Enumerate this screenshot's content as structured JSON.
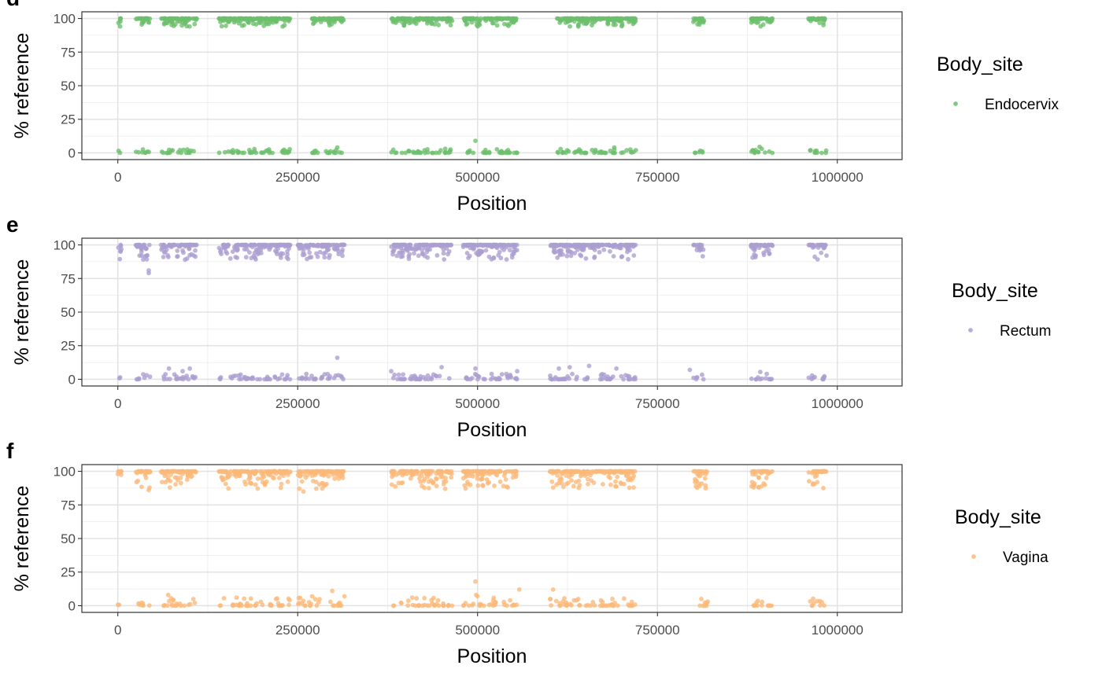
{
  "chart_data": [
    {
      "type": "scatter",
      "panel_tag": "d",
      "xlabel": "Position",
      "ylabel": "% reference",
      "xlim": [
        -50000,
        1090000
      ],
      "ylim": [
        -5,
        105
      ],
      "xticks": [
        0,
        250000,
        500000,
        750000,
        1000000
      ],
      "xtick_labels": [
        "0",
        "250000",
        "500000",
        "750000",
        "1000000"
      ],
      "yticks": [
        0,
        25,
        50,
        75,
        100
      ],
      "ytick_labels": [
        "0",
        "25",
        "50",
        "75",
        "100"
      ],
      "grid": true,
      "legend": {
        "title": "Body_site",
        "placement": "right",
        "entries": [
          {
            "label": "Endocervix",
            "color": "#6bbf6b"
          }
        ]
      },
      "series": [
        {
          "name": "Endocervix",
          "color": "#6bbf6b",
          "segments": [
            [
              0,
              5000
            ],
            [
              25000,
              45000
            ],
            [
              60000,
              110000
            ],
            [
              140000,
              240000
            ],
            [
              270000,
              315000
            ],
            [
              380000,
              465000
            ],
            [
              480000,
              555000
            ],
            [
              610000,
              720000
            ],
            [
              800000,
              815000
            ],
            [
              880000,
              910000
            ],
            [
              960000,
              985000
            ]
          ],
          "dense_high": [
            [
              25000,
              110000
            ],
            [
              140000,
              315000
            ],
            [
              380000,
              720000
            ],
            [
              880000,
              910000
            ],
            [
              960000,
              985000
            ]
          ],
          "high_range": [
            94,
            100
          ],
          "low_range": [
            0,
            3
          ],
          "outliers": [
            [
              497000,
              9
            ],
            [
              892000,
              4.5
            ],
            [
              895000,
              3
            ],
            [
              455000,
              3
            ],
            [
              160000,
              2
            ],
            [
              305000,
              4
            ],
            [
              690000,
              4
            ],
            [
              720000,
              2
            ],
            [
              800000,
              97.5
            ],
            [
              640000,
              94
            ]
          ]
        }
      ]
    },
    {
      "type": "scatter",
      "panel_tag": "e",
      "xlabel": "Position",
      "ylabel": "% reference",
      "xlim": [
        -50000,
        1090000
      ],
      "ylim": [
        -5,
        105
      ],
      "xticks": [
        0,
        250000,
        500000,
        750000,
        1000000
      ],
      "xtick_labels": [
        "0",
        "250000",
        "500000",
        "750000",
        "1000000"
      ],
      "yticks": [
        0,
        25,
        50,
        75,
        100
      ],
      "ytick_labels": [
        "0",
        "25",
        "50",
        "75",
        "100"
      ],
      "grid": true,
      "legend": {
        "title": "Body_site",
        "placement": "right",
        "entries": [
          {
            "label": "Rectum",
            "color": "#ab9ed1"
          }
        ]
      },
      "series": [
        {
          "name": "Rectum",
          "color": "#ab9ed1",
          "segments": [
            [
              0,
              5000
            ],
            [
              25000,
              45000
            ],
            [
              60000,
              110000
            ],
            [
              140000,
              240000
            ],
            [
              250000,
              315000
            ],
            [
              380000,
              465000
            ],
            [
              480000,
              555000
            ],
            [
              600000,
              720000
            ],
            [
              800000,
              815000
            ],
            [
              880000,
              910000
            ],
            [
              960000,
              985000
            ]
          ],
          "dense_high": [
            [
              25000,
              110000
            ],
            [
              140000,
              315000
            ],
            [
              380000,
              720000
            ],
            [
              880000,
              910000
            ],
            [
              960000,
              985000
            ]
          ],
          "high_range": [
            89,
            100
          ],
          "low_range": [
            0,
            4
          ],
          "outliers": [
            [
              43000,
              81
            ],
            [
              43000,
              79
            ],
            [
              33000,
              92
            ],
            [
              40000,
              92
            ],
            [
              305000,
              16
            ],
            [
              71000,
              8
            ],
            [
              90000,
              6
            ],
            [
              100000,
              8
            ],
            [
              655000,
              10
            ],
            [
              450000,
              9
            ],
            [
              497000,
              8
            ],
            [
              613000,
              8
            ],
            [
              628000,
              9
            ],
            [
              693000,
              8
            ],
            [
              555000,
              6
            ],
            [
              795000,
              7
            ],
            [
              380000,
              6
            ],
            [
              893000,
              5.5
            ],
            [
              310000,
              2.5
            ],
            [
              540000,
              4
            ]
          ]
        }
      ]
    },
    {
      "type": "scatter",
      "panel_tag": "f",
      "xlabel": "Position",
      "ylabel": "% reference",
      "xlim": [
        -50000,
        1090000
      ],
      "ylim": [
        -5,
        105
      ],
      "xticks": [
        0,
        250000,
        500000,
        750000,
        1000000
      ],
      "xtick_labels": [
        "0",
        "250000",
        "500000",
        "750000",
        "1000000"
      ],
      "yticks": [
        0,
        25,
        50,
        75,
        100
      ],
      "ytick_labels": [
        "0",
        "25",
        "50",
        "75",
        "100"
      ],
      "grid": true,
      "legend": {
        "title": "Body_site",
        "placement": "right",
        "entries": [
          {
            "label": "Vagina",
            "color": "#fbb878"
          }
        ]
      },
      "series": [
        {
          "name": "Vagina",
          "color": "#fbb878",
          "segments": [
            [
              0,
              5000
            ],
            [
              25000,
              45000
            ],
            [
              60000,
              110000
            ],
            [
              140000,
              240000
            ],
            [
              250000,
              315000
            ],
            [
              380000,
              465000
            ],
            [
              480000,
              555000
            ],
            [
              600000,
              720000
            ],
            [
              800000,
              820000
            ],
            [
              880000,
              910000
            ],
            [
              960000,
              985000
            ]
          ],
          "dense_high": [
            [
              25000,
              110000
            ],
            [
              140000,
              315000
            ],
            [
              380000,
              720000
            ],
            [
              880000,
              910000
            ],
            [
              960000,
              985000
            ]
          ],
          "high_range": [
            87,
            100
          ],
          "low_range": [
            0,
            6
          ],
          "outliers": [
            [
              497000,
              18
            ],
            [
              498000,
              8
            ],
            [
              500000,
              7
            ],
            [
              605000,
              12
            ],
            [
              298000,
              11
            ],
            [
              315000,
              7
            ],
            [
              70000,
              8
            ],
            [
              558000,
              12
            ],
            [
              258000,
              85
            ],
            [
              43000,
              86
            ],
            [
              455000,
              87
            ],
            [
              605000,
              88
            ],
            [
              165000,
              6
            ],
            [
              270000,
              7
            ],
            [
              820000,
              3
            ],
            [
              640000,
              5
            ]
          ]
        }
      ]
    }
  ]
}
